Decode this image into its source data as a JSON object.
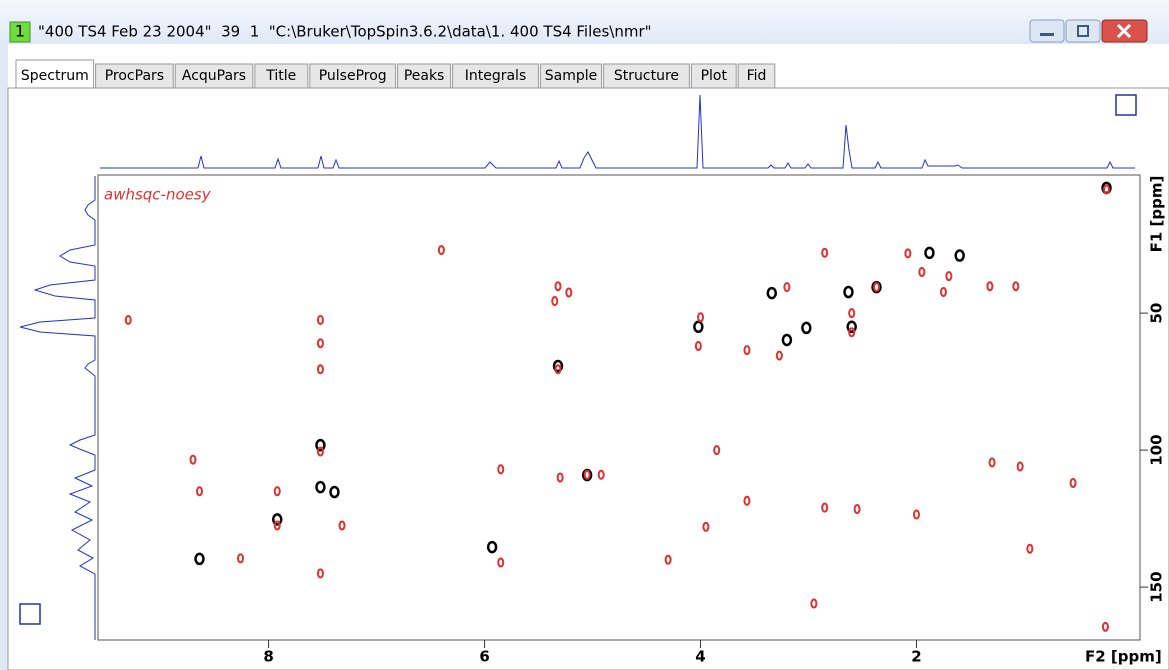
{
  "window": {
    "number": "1",
    "title": "\"400 TS4 Feb 23 2004\"  39  1  \"C:\\Bruker\\TopSpin3.6.2\\data\\1. 400 TS4 Files\\nmr\""
  },
  "tabs": [
    "Spectrum",
    "ProcPars",
    "AcquPars",
    "Title",
    "PulseProg",
    "Peaks",
    "Integrals",
    "Sample",
    "Structure",
    "Plot",
    "Fid"
  ],
  "chart_data": {
    "type": "scatter",
    "annotation": "awhsqc-noesy",
    "x_label": "F2 [ppm]",
    "y_label": "F1 [ppm]",
    "xlim": [
      9.58,
      -0.07
    ],
    "xticks": [
      8,
      6,
      4,
      2
    ],
    "ylim": [
      -0.4,
      169.3
    ],
    "yticks": [
      50,
      100,
      150
    ],
    "series": [
      {
        "color": "#000000",
        "x": [
          0.24,
          1.88,
          1.6,
          2.37,
          2.63,
          3.34,
          2.6,
          3.02,
          3.2,
          4.02,
          5.32,
          7.52,
          7.52,
          7.39,
          5.05,
          7.92,
          5.93,
          8.64
        ],
        "values": [
          4.3,
          28,
          29,
          40.5,
          42.3,
          42.7,
          55,
          55.4,
          59.8,
          55,
          69.3,
          98.2,
          113.5,
          115.3,
          109.1,
          125.3,
          135.4,
          139.7
        ]
      },
      {
        "color": "#e03030",
        "x": [
          0.24,
          2.08,
          1.95,
          2.37,
          2.85,
          3.2,
          1.32,
          1.08,
          2.6,
          2.6,
          1.75,
          1.7,
          4.0,
          4.02,
          3.57,
          3.27,
          5.32,
          5.35,
          5.32,
          7.52,
          7.52,
          7.52,
          7.52,
          8.64,
          7.92,
          7.92,
          7.32,
          5.05,
          4.92,
          5.3,
          3.85,
          3.57,
          2.85,
          2.55,
          1.3,
          1.04,
          9.3,
          8.7,
          8.26,
          6.4,
          5.85,
          5.22,
          4.3,
          2.95,
          2.0,
          0.95,
          0.55,
          0.25,
          5.85,
          7.52,
          3.95
        ],
        "values": [
          4.9,
          28.2,
          35,
          40.5,
          28,
          40.5,
          40.2,
          40.2,
          50,
          57,
          42.3,
          36.5,
          51.5,
          62,
          63.5,
          65.5,
          40.2,
          45.6,
          70.5,
          52.5,
          61,
          70.5,
          100.5,
          115,
          115,
          127.5,
          127.5,
          109,
          109,
          110,
          100,
          118.5,
          121,
          121.5,
          104.5,
          106,
          52.5,
          103.5,
          139.5,
          27,
          107,
          42.5,
          140,
          156,
          123.5,
          136,
          112,
          164.5,
          141,
          145,
          128
        ]
      }
    ]
  }
}
